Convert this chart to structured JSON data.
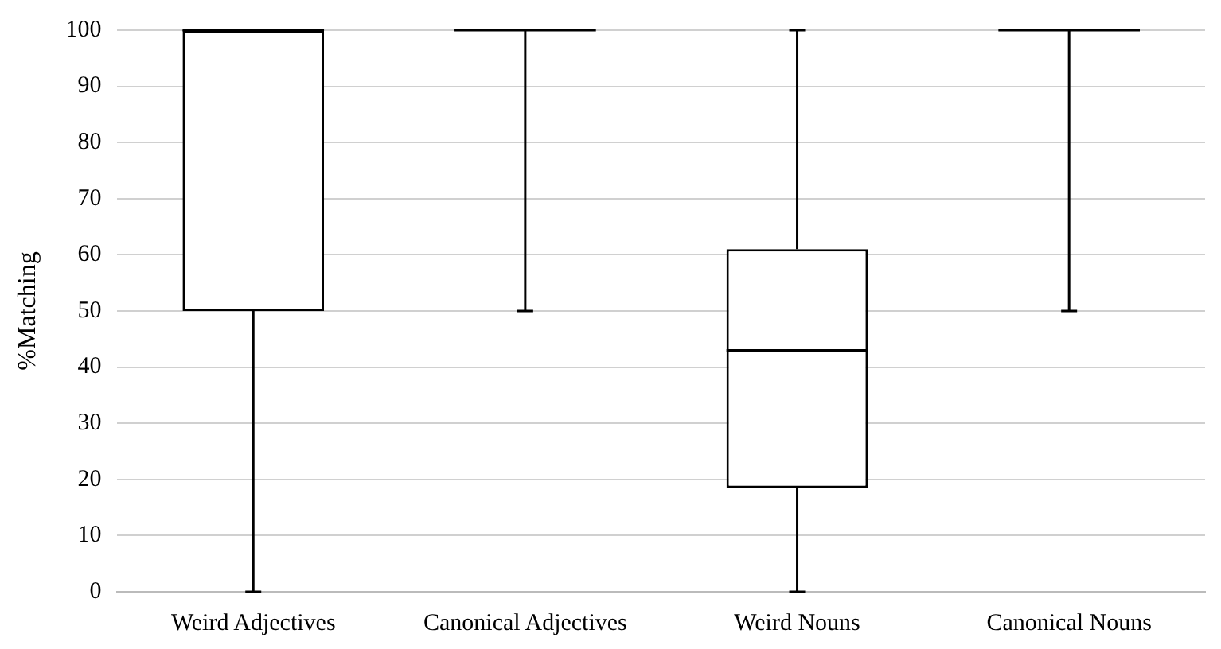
{
  "chart_data": {
    "type": "box",
    "ylabel": "%Matching",
    "categories": [
      "Weird Adjectives",
      "Canonical Adjectives",
      "Weird Nouns",
      "Canonical Nouns"
    ],
    "boxes": [
      {
        "low": 0,
        "q1": 50,
        "median": 100,
        "q3": 100,
        "high": 100
      },
      {
        "low": 50,
        "q1": 100,
        "median": 100,
        "q3": 100,
        "high": 100
      },
      {
        "low": 0,
        "q1": 18.5,
        "median": 43,
        "q3": 61,
        "high": 100
      },
      {
        "low": 50,
        "q1": 100,
        "median": 100,
        "q3": 100,
        "high": 100
      }
    ],
    "color": "#000000",
    "ylim": [
      0,
      100
    ],
    "yticks": [
      0,
      10,
      20,
      30,
      40,
      50,
      60,
      70,
      80,
      90,
      100
    ],
    "grid": "y",
    "legend": false
  }
}
